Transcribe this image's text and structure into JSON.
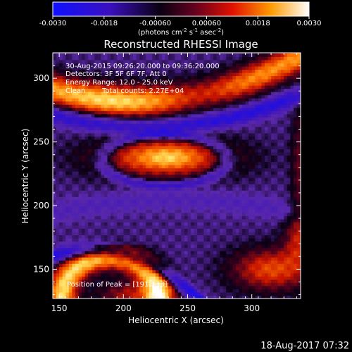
{
  "chart_data": {
    "type": "heatmap",
    "title": "Reconstructed RHESSI Image",
    "xlabel": "Heliocentric X (arcsec)",
    "ylabel": "Heliocentric Y (arcsec)",
    "xlim": [
      145,
      338
    ],
    "ylim": [
      127,
      320
    ],
    "x_ticks": [
      150,
      200,
      250,
      300
    ],
    "y_ticks": [
      150,
      200,
      250,
      300
    ],
    "colorbar": {
      "min": -0.003,
      "max": 0.003,
      "ticks": [
        "-0.0030",
        "-0.0018",
        "-0.00060",
        "0.00060",
        "0.0018",
        "0.0030"
      ],
      "unit_label": "(photons cm",
      "unit_exp1": "-2",
      "unit_mid": " s",
      "unit_exp2": "-1",
      "unit_end": " asec",
      "unit_exp3": "-2",
      "unit_close": ")",
      "colors": [
        "#0000ff",
        "#000000",
        "#ff0000",
        "#ffffff"
      ]
    },
    "annotations": [
      "30-Aug-2015 09:26:20.000 to 09:36:20.000",
      "Detectors: 3F 5F 6F 7F, Att 0",
      "Energy Range: 12.0 - 25.0 keV",
      "Clean",
      "Total counts: 2.27E+04"
    ],
    "position_readout": "Position of Peak = [191,133]",
    "features": [
      {
        "name": "upper-bright-arc",
        "peak_x": 190,
        "peak_y": 285
      },
      {
        "name": "central-source",
        "peak_x": 235,
        "peak_y": 237
      },
      {
        "name": "lower-bright-arc",
        "peak_x": 191,
        "peak_y": 133
      }
    ]
  },
  "footer": {
    "timestamp": "18-Aug-2017 07:32"
  }
}
